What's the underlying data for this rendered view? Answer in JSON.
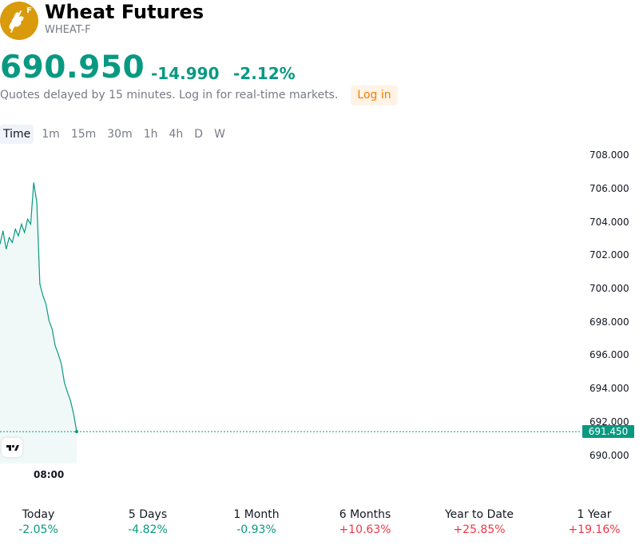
{
  "header": {
    "logo_badge": "F",
    "title": "Wheat Futures",
    "symbol": "WHEAT-F"
  },
  "quote": {
    "price": "690.950",
    "change": "-14.990",
    "change_percent": "-2.12%",
    "delayed_note": "Quotes delayed by 15 minutes. Log in for real-time markets.",
    "login_label": "Log in"
  },
  "tabs": [
    "Time",
    "1m",
    "15m",
    "30m",
    "1h",
    "4h",
    "D",
    "W"
  ],
  "active_tab": "Time",
  "chart": {
    "y_ticks": [
      "708.000",
      "706.000",
      "704.000",
      "702.000",
      "700.000",
      "698.000",
      "696.000",
      "694.000",
      "692.000",
      "690.000"
    ],
    "x_tick": "08:00",
    "last_price_tag": "691.450"
  },
  "chart_data": {
    "type": "area",
    "ylim": [
      689,
      709
    ],
    "y": [
      702.7,
      703.5,
      702.4,
      703.1,
      702.8,
      703.6,
      703.2,
      703.9,
      703.4,
      704.2,
      703.9,
      706.4,
      705.2,
      700.3,
      699.6,
      699.1,
      698.1,
      697.6,
      696.6,
      696.1,
      695.5,
      694.4,
      693.8,
      693.3,
      692.5,
      691.45
    ],
    "last_price": 691.45,
    "series_color": "#089981"
  },
  "performance": [
    {
      "label": "Today",
      "value": "-2.05%",
      "trend": "neg"
    },
    {
      "label": "5 Days",
      "value": "-4.82%",
      "trend": "neg"
    },
    {
      "label": "1 Month",
      "value": "-0.93%",
      "trend": "neg"
    },
    {
      "label": "6 Months",
      "value": "+10.63%",
      "trend": "pos"
    },
    {
      "label": "Year to Date",
      "value": "+25.85%",
      "trend": "pos"
    },
    {
      "label": "1 Year",
      "value": "+19.16%",
      "trend": "pos"
    }
  ],
  "colors": {
    "up": "#f23645",
    "down": "#089981",
    "accent": "#f57c00"
  }
}
